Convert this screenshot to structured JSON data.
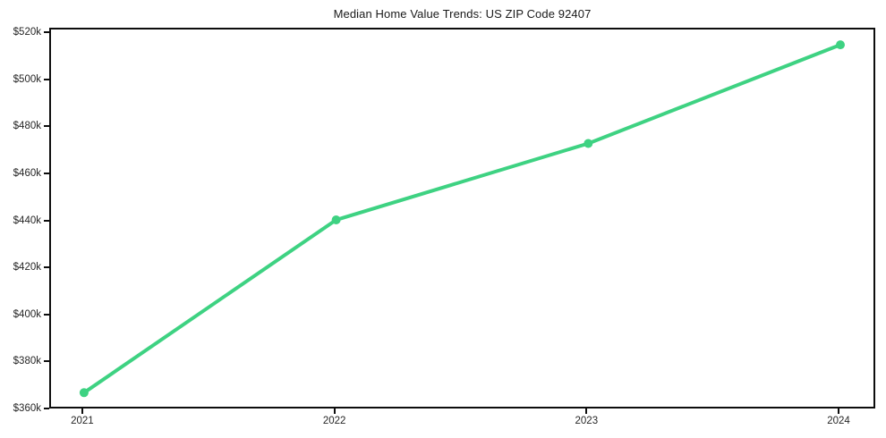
{
  "title": "Median Home Value Trends: US ZIP Code 92407",
  "colors": {
    "line": "#3ed282",
    "axis": "#0d0d0d",
    "text": "#262626",
    "background": "#ffffff"
  },
  "chart_data": {
    "type": "line",
    "title": "Median Home Value Trends: US ZIP Code 92407",
    "x": [
      2021,
      2022,
      2023,
      2024
    ],
    "x_tick_labels": [
      "2021",
      "2022",
      "2023",
      "2024"
    ],
    "series": [
      {
        "name": "Median Home Value",
        "values": [
          367500,
          441000,
          473500,
          515500
        ]
      }
    ],
    "xlabel": "",
    "ylabel": "",
    "ylim": [
      360000,
      522000
    ],
    "y_ticks": [
      360000,
      380000,
      400000,
      420000,
      440000,
      460000,
      480000,
      500000,
      520000
    ],
    "y_tick_labels": [
      "$360k",
      "$380k",
      "$400k",
      "$420k",
      "$440k",
      "$460k",
      "$480k",
      "$500k",
      "$520k"
    ],
    "grid": false,
    "legend": "none",
    "line_color": "#3ed282",
    "marker": "circle",
    "marker_radius": 5,
    "line_width": 4
  }
}
